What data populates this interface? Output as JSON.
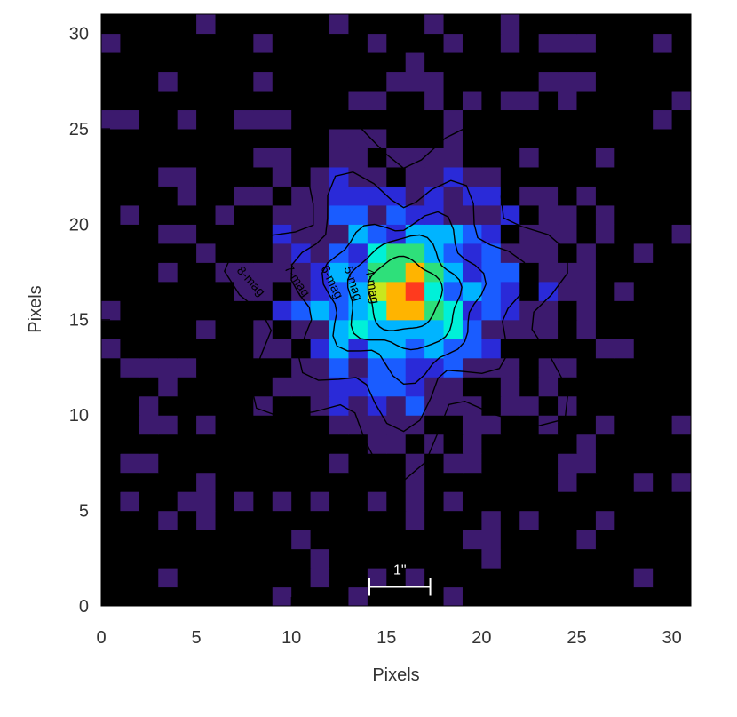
{
  "chart_data": {
    "type": "heatmap",
    "title": "",
    "xlabel": "Pixels",
    "ylabel": "Pixels",
    "xlim": [
      0,
      31
    ],
    "ylim": [
      0,
      31
    ],
    "x_ticks": [
      "0",
      "5",
      "10",
      "15",
      "20",
      "25",
      "30"
    ],
    "y_ticks": [
      "0",
      "5",
      "10",
      "15",
      "20",
      "25",
      "30"
    ],
    "x_tick_values": [
      0,
      5,
      10,
      15,
      20,
      25,
      30
    ],
    "y_tick_values": [
      0,
      5,
      10,
      15,
      20,
      25,
      30
    ],
    "colormap": [
      "#000000",
      "#3c1a6e",
      "#2a2ad8",
      "#1a5cff",
      "#00b4ff",
      "#00f0d8",
      "#2ee07a",
      "#c8e61e",
      "#ffb400",
      "#ff3a1e"
    ],
    "source_peak": {
      "x": 15.9,
      "y": 16.3
    },
    "contours": [
      {
        "label": "4-mag",
        "radius": 1.9
      },
      {
        "label": "5-mag",
        "radius": 2.9
      },
      {
        "label": "6-mag",
        "radius": 4.0
      },
      {
        "label": "7-mag",
        "radius": 5.8
      },
      {
        "label": "8-mag",
        "radius": 8.2
      }
    ],
    "scale_bar": {
      "label": "1\"",
      "x_start": 14.1,
      "x_end": 17.3,
      "y": 1.0
    }
  }
}
